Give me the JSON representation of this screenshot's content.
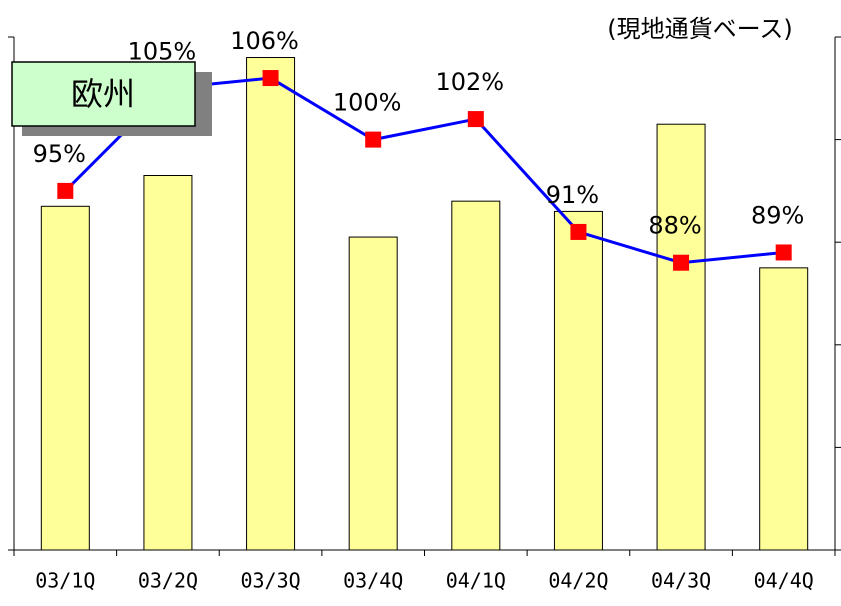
{
  "chart_data": {
    "type": "bar",
    "annotation": "(現地通貨ベース)",
    "label": "欧州",
    "categories": [
      "03/1Q",
      "03/2Q",
      "03/3Q",
      "03/4Q",
      "04/1Q",
      "04/2Q",
      "04/3Q",
      "04/4Q"
    ],
    "ylim": [
      0,
      100
    ],
    "yticks": [
      0,
      100
    ],
    "y2lim": [
      60,
      110
    ],
    "y2ticks": [
      60,
      70,
      80,
      90,
      100,
      110
    ],
    "series": [
      {
        "type": "bar",
        "color": "#ffff99",
        "values": [
          67,
          73,
          96,
          61,
          68,
          66,
          83,
          55
        ]
      },
      {
        "type": "line",
        "axis": "y2",
        "color": "#0000ff",
        "marker_color": "#ff0000",
        "values": [
          95,
          105,
          106,
          100,
          102,
          91,
          88,
          89
        ],
        "value_labels": [
          "95%",
          "105%",
          "106%",
          "100%",
          "102%",
          "91%",
          "88%",
          "89%"
        ]
      }
    ]
  }
}
